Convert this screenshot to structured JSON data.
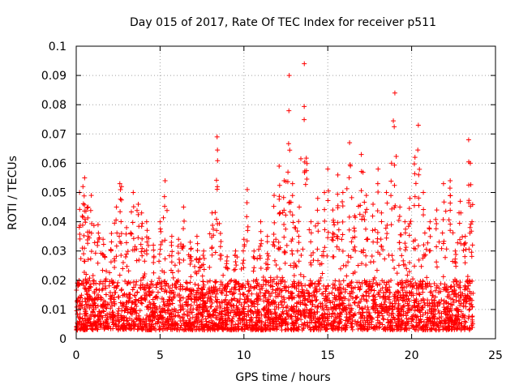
{
  "chart_data": {
    "type": "scatter",
    "title": "Day 015 of 2017, Rate Of TEC Index for receiver p511",
    "xlabel": "GPS time / hours",
    "ylabel": "ROTI / TECUs",
    "xlim": [
      0,
      25
    ],
    "ylim": [
      0,
      0.1
    ],
    "xticks": [
      0,
      5,
      10,
      15,
      20,
      25
    ],
    "yticks": [
      0,
      0.01,
      0.02,
      0.03,
      0.04,
      0.05,
      0.06,
      0.07,
      0.08,
      0.09,
      0.1
    ],
    "xtick_labels": [
      "0",
      "5",
      "10",
      "15",
      "20",
      "25"
    ],
    "ytick_labels": [
      "0",
      "0.01",
      "0.02",
      "0.03",
      "0.04",
      "0.05",
      "0.06",
      "0.07",
      "0.08",
      "0.09",
      "0.1"
    ],
    "grid": true,
    "marker": "plus",
    "color": "#ff0000",
    "x_data_range": [
      0,
      23.7
    ],
    "dense_band_range": [
      0.003,
      0.02
    ],
    "peaks": [
      {
        "x": 0.1,
        "y": 0.018
      },
      {
        "x": 0.2,
        "y": 0.05
      },
      {
        "x": 0.4,
        "y": 0.052
      },
      {
        "x": 0.5,
        "y": 0.055
      },
      {
        "x": 0.7,
        "y": 0.045
      },
      {
        "x": 0.9,
        "y": 0.049
      },
      {
        "x": 1.3,
        "y": 0.039
      },
      {
        "x": 1.6,
        "y": 0.034
      },
      {
        "x": 2.1,
        "y": 0.036
      },
      {
        "x": 2.4,
        "y": 0.045
      },
      {
        "x": 2.6,
        "y": 0.053
      },
      {
        "x": 2.7,
        "y": 0.052
      },
      {
        "x": 3.0,
        "y": 0.038
      },
      {
        "x": 3.4,
        "y": 0.05
      },
      {
        "x": 3.7,
        "y": 0.046
      },
      {
        "x": 3.9,
        "y": 0.043
      },
      {
        "x": 4.2,
        "y": 0.04
      },
      {
        "x": 4.6,
        "y": 0.032
      },
      {
        "x": 5.0,
        "y": 0.04
      },
      {
        "x": 5.3,
        "y": 0.054
      },
      {
        "x": 5.7,
        "y": 0.035
      },
      {
        "x": 6.1,
        "y": 0.034
      },
      {
        "x": 6.4,
        "y": 0.045
      },
      {
        "x": 6.8,
        "y": 0.033
      },
      {
        "x": 7.2,
        "y": 0.035
      },
      {
        "x": 7.6,
        "y": 0.03
      },
      {
        "x": 8.1,
        "y": 0.043
      },
      {
        "x": 8.4,
        "y": 0.069
      },
      {
        "x": 8.6,
        "y": 0.036
      },
      {
        "x": 9.0,
        "y": 0.028
      },
      {
        "x": 9.5,
        "y": 0.03
      },
      {
        "x": 10.0,
        "y": 0.034
      },
      {
        "x": 10.2,
        "y": 0.051
      },
      {
        "x": 10.6,
        "y": 0.03
      },
      {
        "x": 11.0,
        "y": 0.04
      },
      {
        "x": 11.4,
        "y": 0.035
      },
      {
        "x": 11.8,
        "y": 0.049
      },
      {
        "x": 12.1,
        "y": 0.059
      },
      {
        "x": 12.4,
        "y": 0.054
      },
      {
        "x": 12.7,
        "y": 0.09
      },
      {
        "x": 12.9,
        "y": 0.053
      },
      {
        "x": 13.3,
        "y": 0.045
      },
      {
        "x": 13.6,
        "y": 0.094
      },
      {
        "x": 14.0,
        "y": 0.04
      },
      {
        "x": 14.4,
        "y": 0.048
      },
      {
        "x": 14.8,
        "y": 0.05
      },
      {
        "x": 15.0,
        "y": 0.058
      },
      {
        "x": 15.3,
        "y": 0.044
      },
      {
        "x": 15.6,
        "y": 0.056
      },
      {
        "x": 15.9,
        "y": 0.05
      },
      {
        "x": 16.3,
        "y": 0.067
      },
      {
        "x": 16.6,
        "y": 0.042
      },
      {
        "x": 17.0,
        "y": 0.063
      },
      {
        "x": 17.3,
        "y": 0.049
      },
      {
        "x": 17.7,
        "y": 0.046
      },
      {
        "x": 18.0,
        "y": 0.058
      },
      {
        "x": 18.2,
        "y": 0.043
      },
      {
        "x": 18.5,
        "y": 0.05
      },
      {
        "x": 18.8,
        "y": 0.06
      },
      {
        "x": 19.0,
        "y": 0.084
      },
      {
        "x": 19.3,
        "y": 0.045
      },
      {
        "x": 19.6,
        "y": 0.04
      },
      {
        "x": 19.9,
        "y": 0.048
      },
      {
        "x": 20.2,
        "y": 0.062
      },
      {
        "x": 20.4,
        "y": 0.073
      },
      {
        "x": 20.7,
        "y": 0.05
      },
      {
        "x": 21.1,
        "y": 0.04
      },
      {
        "x": 21.5,
        "y": 0.044
      },
      {
        "x": 21.9,
        "y": 0.053
      },
      {
        "x": 22.3,
        "y": 0.054
      },
      {
        "x": 22.6,
        "y": 0.03
      },
      {
        "x": 22.9,
        "y": 0.047
      },
      {
        "x": 23.2,
        "y": 0.035
      },
      {
        "x": 23.4,
        "y": 0.068
      },
      {
        "x": 23.5,
        "y": 0.06
      },
      {
        "x": 23.6,
        "y": 0.04
      }
    ]
  }
}
